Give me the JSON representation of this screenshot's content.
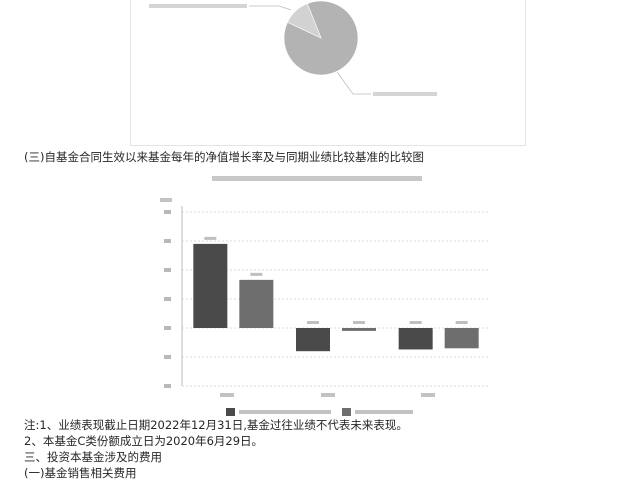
{
  "pie_chart": {
    "slices": [
      {
        "label": "",
        "value": 88,
        "color": "#b3b3b3"
      },
      {
        "label": "",
        "value": 12,
        "color": "#d2d2d2"
      }
    ]
  },
  "section_heading": "(三)自基金合同生效以来基金每年的净值增长率及与同期业绩比较基准的比较图",
  "chart_data": {
    "type": "bar",
    "title": "",
    "xlabel": "",
    "ylabel": "",
    "categories": [
      "",
      "",
      ""
    ],
    "series": [
      {
        "name": "",
        "color": "#4a4a4a",
        "values": [
          14.5,
          -4.0,
          -3.7
        ]
      },
      {
        "name": "",
        "color": "#6e6e6e",
        "values": [
          8.3,
          -0.5,
          -3.5
        ]
      }
    ],
    "ylim": [
      -10,
      20
    ],
    "legend_position": "bottom",
    "grid": true
  },
  "notes": [
    "注:1、业绩表现截止日期2022年12月31日,基金过往业绩不代表未来表现。",
    "2、本基金C类份额成立日为2020年6月29日。",
    "三、投资本基金涉及的费用",
    "(一)基金销售相关费用"
  ]
}
